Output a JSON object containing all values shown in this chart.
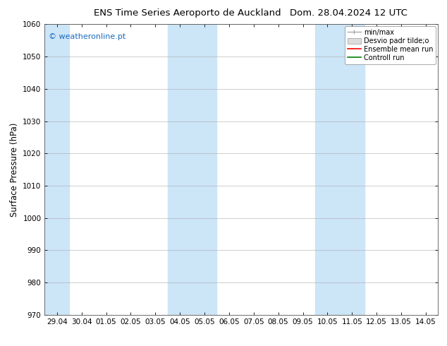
{
  "title_left": "ENS Time Series Aeroporto de Auckland",
  "title_right": "Dom. 28.04.2024 12 UTC",
  "ylabel": "Surface Pressure (hPa)",
  "ylim": [
    970,
    1060
  ],
  "yticks": [
    970,
    980,
    990,
    1000,
    1010,
    1020,
    1030,
    1040,
    1050,
    1060
  ],
  "x_labels": [
    "29.04",
    "30.04",
    "01.05",
    "02.05",
    "03.05",
    "04.05",
    "05.05",
    "06.05",
    "07.05",
    "08.05",
    "09.05",
    "10.05",
    "11.05",
    "12.05",
    "13.05",
    "14.05"
  ],
  "x_values": [
    0,
    1,
    2,
    3,
    4,
    5,
    6,
    7,
    8,
    9,
    10,
    11,
    12,
    13,
    14,
    15
  ],
  "shaded_regions": [
    {
      "xmin": -0.5,
      "xmax": 0.5,
      "color": "#cce5f7"
    },
    {
      "xmin": 4.5,
      "xmax": 6.5,
      "color": "#cce5f7"
    },
    {
      "xmin": 10.5,
      "xmax": 12.5,
      "color": "#cce5f7"
    }
  ],
  "watermark": "© weatheronline.pt",
  "watermark_color": "#1a6bbf",
  "legend_items": [
    {
      "label": "min/max",
      "color": "#aaaaaa",
      "type": "errorbar"
    },
    {
      "label": "Desvio padr tilde;o",
      "color": "#cccccc",
      "type": "band"
    },
    {
      "label": "Ensemble mean run",
      "color": "#ff0000",
      "type": "line"
    },
    {
      "label": "Controll run",
      "color": "#008000",
      "type": "line"
    }
  ],
  "background_color": "#ffffff",
  "title_fontsize": 9.5,
  "tick_fontsize": 7.5,
  "ylabel_fontsize": 8.5,
  "legend_fontsize": 7.0
}
